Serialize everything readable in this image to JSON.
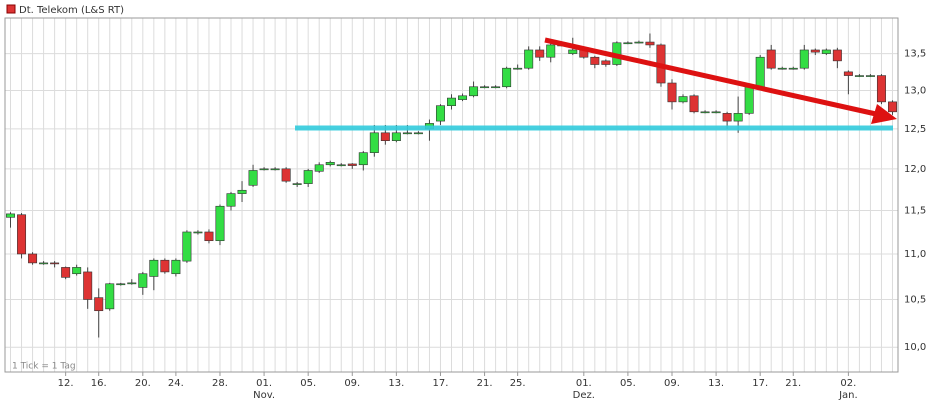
{
  "chart_data": {
    "type": "candlestick",
    "title": "Dt. Telekom (L&S RT)",
    "footnote": "1 Tick = 1 Tag",
    "log_scale": true,
    "grid": true,
    "up_color": "#33dd44",
    "down_color": "#dd3333",
    "ylim": [
      9.75,
      14.0
    ],
    "yticks": [
      {
        "value": 10.0,
        "label": "10,0"
      },
      {
        "value": 10.5,
        "label": "10,5"
      },
      {
        "value": 11.0,
        "label": "11,0"
      },
      {
        "value": 11.5,
        "label": "11,5"
      },
      {
        "value": 12.0,
        "label": "12,0"
      },
      {
        "value": 12.5,
        "label": "12,5"
      },
      {
        "value": 13.0,
        "label": "13,0"
      },
      {
        "value": 13.5,
        "label": "13,5"
      }
    ],
    "categories": [
      null,
      null,
      null,
      null,
      null,
      "12.",
      null,
      null,
      "16.",
      null,
      null,
      null,
      "20.",
      null,
      null,
      "24.",
      null,
      null,
      null,
      "28.",
      null,
      null,
      null,
      "01.",
      null,
      null,
      null,
      "05.",
      null,
      null,
      null,
      "09.",
      null,
      null,
      null,
      "13.",
      null,
      null,
      null,
      "17.",
      null,
      null,
      null,
      "21.",
      null,
      null,
      "25.",
      null,
      null,
      null,
      null,
      null,
      "01.",
      null,
      null,
      null,
      "05.",
      null,
      null,
      null,
      "09.",
      null,
      null,
      null,
      "13.",
      null,
      null,
      null,
      "17.",
      null,
      null,
      "21.",
      null,
      null,
      null,
      null,
      "02.",
      null,
      null,
      null,
      null
    ],
    "months": [
      null,
      null,
      null,
      null,
      null,
      null,
      null,
      null,
      null,
      null,
      null,
      null,
      null,
      null,
      null,
      null,
      null,
      null,
      null,
      null,
      null,
      null,
      null,
      "Nov.",
      null,
      null,
      null,
      null,
      null,
      null,
      null,
      null,
      null,
      null,
      null,
      null,
      null,
      null,
      null,
      null,
      null,
      null,
      null,
      null,
      null,
      null,
      null,
      null,
      null,
      null,
      null,
      null,
      "Dez.",
      null,
      null,
      null,
      null,
      null,
      null,
      null,
      null,
      null,
      null,
      null,
      null,
      null,
      null,
      null,
      null,
      null,
      null,
      null,
      null,
      null,
      null,
      null,
      "Jan.",
      null,
      null,
      null,
      null
    ],
    "open": [
      11.42,
      11.45,
      11.0,
      10.9,
      10.9,
      10.85,
      10.78,
      10.8,
      10.52,
      10.4,
      10.67,
      10.68,
      10.63,
      10.75,
      10.93,
      10.78,
      10.92,
      11.25,
      11.25,
      11.15,
      11.55,
      11.7,
      11.8,
      12.0,
      12.0,
      12.0,
      11.82,
      11.82,
      11.97,
      12.05,
      12.05,
      12.06,
      12.05,
      12.2,
      12.45,
      12.35,
      12.45,
      12.45,
      12.5,
      12.6,
      12.8,
      12.88,
      12.93,
      13.05,
      13.05,
      13.05,
      13.3,
      13.3,
      13.55,
      13.45,
      13.62,
      13.5,
      13.55,
      13.45,
      13.4,
      13.35,
      13.65,
      13.66,
      13.66,
      13.62,
      13.1,
      12.85,
      12.93,
      12.72,
      12.72,
      12.7,
      12.6,
      12.7,
      13.05,
      13.55,
      13.3,
      13.3,
      13.3,
      13.55,
      13.5,
      13.55,
      13.25,
      13.2,
      13.2,
      13.2,
      12.85
    ],
    "high": [
      11.48,
      11.47,
      11.02,
      10.92,
      10.92,
      10.86,
      10.88,
      10.85,
      10.62,
      10.68,
      10.68,
      10.72,
      10.8,
      10.95,
      10.95,
      10.95,
      11.27,
      11.27,
      11.28,
      11.57,
      11.72,
      11.85,
      12.05,
      12.02,
      12.02,
      12.02,
      11.84,
      12.0,
      12.08,
      12.1,
      12.07,
      12.07,
      12.22,
      12.55,
      12.55,
      12.55,
      12.55,
      12.47,
      12.62,
      12.82,
      12.95,
      12.96,
      13.12,
      13.07,
      13.07,
      13.32,
      13.35,
      13.6,
      13.6,
      13.68,
      13.66,
      13.72,
      13.58,
      13.47,
      13.42,
      13.67,
      13.67,
      13.68,
      13.78,
      13.64,
      13.15,
      12.95,
      12.95,
      12.74,
      12.74,
      12.72,
      12.92,
      13.08,
      13.48,
      13.62,
      13.32,
      13.32,
      13.62,
      13.57,
      13.57,
      13.58,
      13.27,
      13.22,
      13.22,
      13.22,
      12.87
    ],
    "low": [
      11.3,
      10.95,
      10.88,
      10.88,
      10.85,
      10.72,
      10.76,
      10.4,
      10.1,
      10.38,
      10.65,
      10.66,
      10.55,
      10.6,
      10.78,
      10.75,
      10.9,
      11.22,
      11.12,
      11.1,
      11.5,
      11.6,
      11.78,
      11.98,
      11.98,
      11.83,
      11.78,
      11.78,
      11.95,
      12.03,
      12.03,
      12.0,
      11.98,
      12.15,
      12.3,
      12.33,
      12.43,
      12.43,
      12.35,
      12.55,
      12.75,
      12.86,
      12.91,
      13.03,
      13.03,
      13.03,
      13.28,
      13.28,
      13.4,
      13.38,
      13.6,
      13.48,
      13.43,
      13.3,
      13.32,
      13.33,
      13.63,
      13.64,
      13.58,
      13.05,
      12.75,
      12.83,
      12.7,
      12.7,
      12.7,
      12.5,
      12.45,
      12.68,
      13.03,
      13.28,
      13.28,
      13.28,
      13.28,
      13.48,
      13.48,
      13.3,
      12.95,
      13.18,
      13.18,
      12.82,
      12.68
    ],
    "close": [
      11.46,
      11.0,
      10.9,
      10.9,
      10.89,
      10.74,
      10.85,
      10.5,
      10.38,
      10.67,
      10.67,
      10.68,
      10.78,
      10.93,
      10.8,
      10.93,
      11.25,
      11.25,
      11.15,
      11.55,
      11.7,
      11.74,
      11.98,
      12.0,
      12.0,
      11.85,
      11.82,
      11.98,
      12.05,
      12.08,
      12.05,
      12.04,
      12.2,
      12.45,
      12.35,
      12.45,
      12.45,
      12.45,
      12.57,
      12.8,
      12.9,
      12.93,
      13.05,
      13.05,
      13.05,
      13.3,
      13.3,
      13.55,
      13.45,
      13.62,
      13.62,
      13.55,
      13.45,
      13.35,
      13.35,
      13.65,
      13.65,
      13.66,
      13.62,
      13.1,
      12.85,
      12.92,
      12.72,
      12.72,
      12.72,
      12.6,
      12.7,
      13.05,
      13.45,
      13.3,
      13.3,
      13.3,
      13.55,
      13.52,
      13.55,
      13.4,
      13.2,
      13.2,
      13.2,
      12.85,
      12.72
    ]
  }
}
